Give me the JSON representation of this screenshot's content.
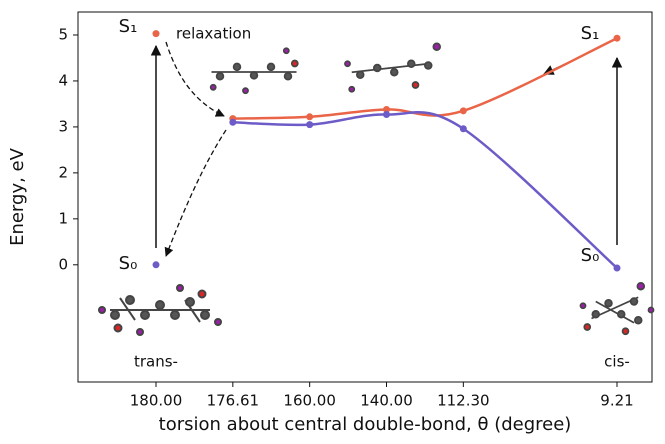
{
  "chart_data": {
    "type": "line",
    "ylabel": "Energy, eV",
    "xlabel": "torsion about central double-bond, θ (degree)",
    "categories": [
      "180.00",
      "176.61",
      "160.00",
      "140.00",
      "112.30",
      null,
      "9.21"
    ],
    "series": [
      {
        "name": "S₁",
        "color": "#ea6547",
        "values": [
          5.03,
          3.18,
          3.22,
          3.38,
          3.35,
          null,
          4.93
        ]
      },
      {
        "name": "S₀",
        "color": "#6d5cc8",
        "values": [
          0.0,
          3.1,
          3.05,
          3.27,
          2.96,
          null,
          -0.07
        ]
      }
    ],
    "annotations": {
      "relaxation": "relaxation",
      "left": "trans-",
      "right": "cis-"
    },
    "ylim": [
      -2.55,
      5.5
    ],
    "yticks": [
      0,
      1,
      2,
      3,
      4,
      5
    ]
  }
}
